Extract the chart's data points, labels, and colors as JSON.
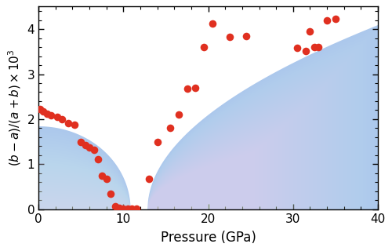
{
  "xlabel": "Pressure (GPa)",
  "xlim": [
    0,
    40
  ],
  "ylim": [
    0,
    4.5
  ],
  "yticks": [
    0,
    1,
    2,
    3,
    4
  ],
  "xticks": [
    0,
    10,
    20,
    30,
    40
  ],
  "scatter_x": [
    0.2,
    0.5,
    1.0,
    1.5,
    2.2,
    2.8,
    3.5,
    4.2,
    5.0,
    5.5,
    6.0,
    6.5,
    7.0,
    7.5,
    8.0,
    8.5,
    9.0,
    9.5,
    10.0,
    10.5,
    11.0,
    11.5,
    13.0,
    14.0,
    15.5,
    16.5,
    17.5,
    18.5,
    19.5,
    20.5,
    22.5,
    24.5,
    30.5,
    31.5,
    32.0,
    32.5,
    33.0,
    34.0,
    35.0
  ],
  "scatter_y": [
    2.22,
    2.18,
    2.12,
    2.08,
    2.05,
    2.0,
    1.92,
    1.88,
    1.5,
    1.42,
    1.38,
    1.32,
    1.12,
    0.75,
    0.68,
    0.35,
    0.07,
    0.03,
    0.02,
    0.02,
    0.02,
    0.02,
    0.68,
    1.5,
    1.8,
    2.1,
    2.68,
    2.7,
    3.6,
    4.12,
    3.82,
    3.85,
    3.58,
    3.52,
    3.95,
    3.6,
    3.6,
    4.2,
    4.22
  ],
  "dot_color": "#e03020",
  "fill_color": "#6699dd",
  "background_color": "#ffffff",
  "curve1_end": 10.8,
  "curve1_peak": 1.85,
  "curve2_start": 12.8,
  "curve2_end": 40.0,
  "curve2_ymax": 4.1
}
